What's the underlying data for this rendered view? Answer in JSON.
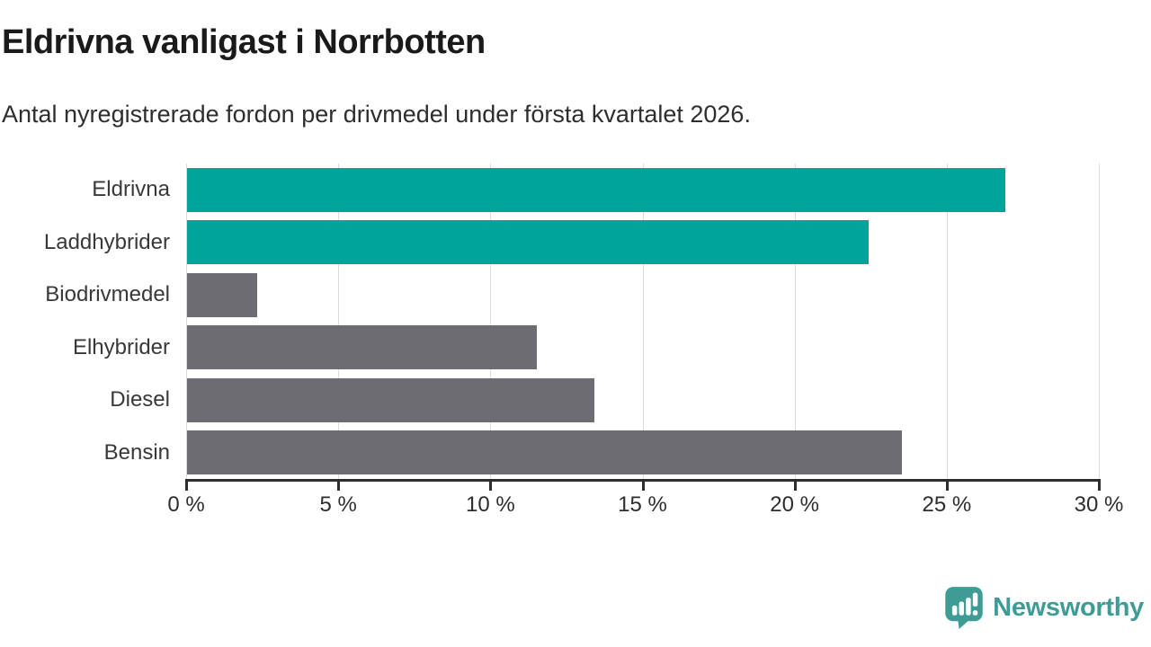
{
  "header": {
    "title": "Eldrivna vanligast i Norrbotten",
    "subtitle": "Antal nyregistrerade fordon per drivmedel under första kvartalet 2026."
  },
  "chart_data": {
    "type": "bar",
    "orientation": "horizontal",
    "title": "Eldrivna vanligast i Norrbotten",
    "subtitle": "Antal nyregistrerade fordon per drivmedel under första kvartalet 2026.",
    "categories": [
      "Eldrivna",
      "Laddhybrider",
      "Biodrivmedel",
      "Elhybrider",
      "Diesel",
      "Bensin"
    ],
    "values": [
      26.9,
      22.4,
      2.3,
      11.5,
      13.4,
      23.5
    ],
    "bar_colors": [
      "#00a49a",
      "#00a49a",
      "#6d6c72",
      "#6d6c72",
      "#6d6c72",
      "#6d6c72"
    ],
    "xlabel": "",
    "ylabel": "",
    "xlim": [
      0,
      30
    ],
    "x_ticks": [
      0,
      5,
      10,
      15,
      20,
      25,
      30
    ],
    "x_tick_labels": [
      "0 %",
      "5 %",
      "10 %",
      "15 %",
      "20 %",
      "25 %",
      "30 %"
    ],
    "grid": "vertical",
    "legend": "none"
  },
  "branding": {
    "logo_text": "Newsworthy",
    "logo_color": "#3f9c95",
    "icon": "bar-chart-speech-bubble"
  },
  "colors": {
    "accent_teal": "#00a49a",
    "neutral_gray": "#6d6c72",
    "gridline": "#dcdcdc",
    "axis": "#2d2d2d",
    "background": "#ffffff"
  }
}
